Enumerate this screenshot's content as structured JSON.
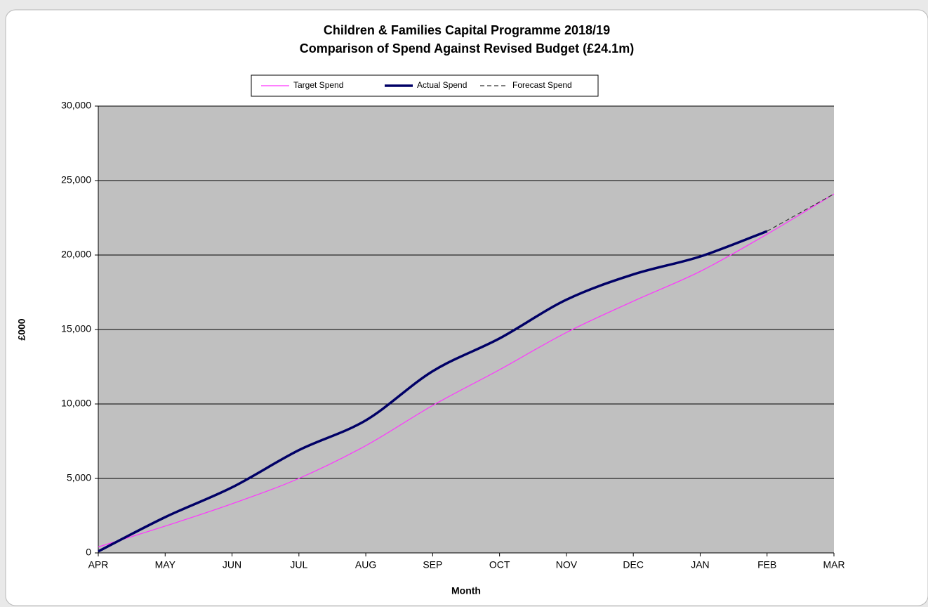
{
  "chart_data": {
    "type": "line",
    "title": "Children & Families Capital Programme 2018/19",
    "subtitle": "Comparison of Spend Against Revised Budget (£24.1m)",
    "x_label": "Month",
    "y_label": "£000",
    "categories": [
      "APR",
      "MAY",
      "JUN",
      "JUL",
      "AUG",
      "SEP",
      "OCT",
      "NOV",
      "DEC",
      "JAN",
      "FEB",
      "MAR"
    ],
    "series": [
      {
        "name": "Target Spend",
        "color": "#ff33ff",
        "values": [
          400,
          1800,
          3300,
          5000,
          7200,
          9900,
          12300,
          14800,
          16900,
          18900,
          21400,
          24100
        ]
      },
      {
        "name": "Actual Spend",
        "color": "#000066",
        "values": [
          100,
          2400,
          4400,
          6900,
          8900,
          12200,
          14400,
          17000,
          18700,
          19900,
          21600,
          null
        ]
      },
      {
        "name": "Forecast Spend",
        "color": "#333333",
        "dashed": true,
        "values": [
          null,
          null,
          null,
          null,
          null,
          null,
          null,
          null,
          null,
          null,
          21600,
          24100
        ]
      }
    ],
    "ylim": [
      0,
      30000
    ],
    "yticks": [
      0,
      {
        "value": 5000,
        "label": "5,000"
      },
      {
        "value": 10000,
        "label": "10,000"
      },
      {
        "value": 15000,
        "label": "15,000"
      },
      {
        "value": 20000,
        "label": "20,000"
      },
      {
        "value": 25000,
        "label": "25,000"
      },
      {
        "value": 30000,
        "label": "30,000"
      }
    ],
    "grid": true,
    "legend": "top"
  }
}
